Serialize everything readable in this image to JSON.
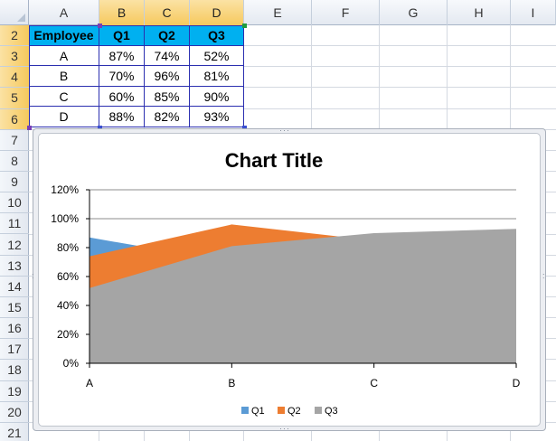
{
  "sheet": {
    "columns": [
      "A",
      "B",
      "C",
      "D",
      "E",
      "F",
      "G",
      "H",
      "I"
    ],
    "rows": [
      "2",
      "3",
      "4",
      "5",
      "6",
      "7",
      "8",
      "9",
      "10",
      "11",
      "12",
      "13",
      "14",
      "15",
      "16",
      "17",
      "18",
      "19",
      "20",
      "21"
    ],
    "selected_columns": [
      "B",
      "C",
      "D"
    ],
    "selected_rows": [
      "2",
      "3",
      "4",
      "5",
      "6"
    ],
    "table": {
      "header": [
        "Employee",
        "Q1",
        "Q2",
        "Q3"
      ],
      "rows": [
        [
          "A",
          "87%",
          "74%",
          "52%"
        ],
        [
          "B",
          "70%",
          "96%",
          "81%"
        ],
        [
          "C",
          "60%",
          "85%",
          "90%"
        ],
        [
          "D",
          "88%",
          "82%",
          "93%"
        ]
      ],
      "header_fill": "#00b0f0",
      "border_color": "#2b2fb0"
    }
  },
  "chart_data": {
    "type": "area",
    "title": "Chart Title",
    "categories": [
      "A",
      "B",
      "C",
      "D"
    ],
    "series": [
      {
        "name": "Q1",
        "values": [
          87,
          70,
          60,
          88
        ],
        "color": "#5b9bd5"
      },
      {
        "name": "Q2",
        "values": [
          74,
          96,
          85,
          82
        ],
        "color": "#ed7d31"
      },
      {
        "name": "Q3",
        "values": [
          52,
          81,
          90,
          93
        ],
        "color": "#a5a5a5"
      }
    ],
    "ylim": [
      0,
      120
    ],
    "yticks": [
      "0%",
      "20%",
      "40%",
      "60%",
      "80%",
      "100%",
      "120%"
    ],
    "grid": true,
    "legend": "bottom"
  }
}
